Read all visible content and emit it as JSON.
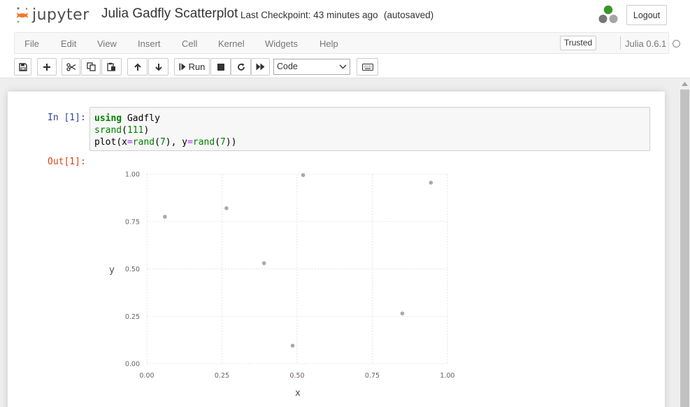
{
  "header": {
    "logo_text": "jupyter",
    "notebook_title": "Julia Gadfly Scatterplot",
    "checkpoint": "Last Checkpoint: 43 minutes ago",
    "autosave_status": "(autosaved)",
    "logout_label": "Logout"
  },
  "menubar": {
    "items": [
      "File",
      "Edit",
      "View",
      "Insert",
      "Cell",
      "Kernel",
      "Widgets",
      "Help"
    ],
    "trusted_label": "Trusted",
    "kernel_name": "Julia 0.6.1"
  },
  "toolbar": {
    "run_label": "Run",
    "cell_type": "Code",
    "icons": [
      "save-icon",
      "plus-icon",
      "scissors-icon",
      "copy-icon",
      "paste-icon",
      "arrow-up-icon",
      "arrow-down-icon",
      "step-forward-icon",
      "stop-icon",
      "restart-icon",
      "fast-forward-icon",
      "keyboard-icon"
    ]
  },
  "cell": {
    "in_prompt": "In [1]:",
    "out_prompt": "Out[1]:",
    "code": {
      "line1_kw": "using",
      "line1_rest": " Gadfly",
      "line2_fn": "srand",
      "line2_arg": "111",
      "line3_fn": "plot",
      "line3_x": "x",
      "line3_fn2": "rand",
      "line3_n": "7",
      "line3_y": "y"
    }
  },
  "chart_data": {
    "type": "scatter",
    "xlabel": "x",
    "ylabel": "y",
    "xlim": [
      0,
      1
    ],
    "ylim": [
      0,
      1
    ],
    "xticks": [
      "0.00",
      "0.25",
      "0.50",
      "0.75",
      "1.00"
    ],
    "yticks": [
      "0.00",
      "0.25",
      "0.50",
      "0.75",
      "1.00"
    ],
    "grid": true,
    "point_color": "#a9a9a9",
    "points": [
      {
        "x": 0.06,
        "y": 0.775
      },
      {
        "x": 0.265,
        "y": 0.82
      },
      {
        "x": 0.39,
        "y": 0.53
      },
      {
        "x": 0.485,
        "y": 0.095
      },
      {
        "x": 0.52,
        "y": 0.995
      },
      {
        "x": 0.85,
        "y": 0.265
      },
      {
        "x": 0.945,
        "y": 0.955
      }
    ]
  }
}
